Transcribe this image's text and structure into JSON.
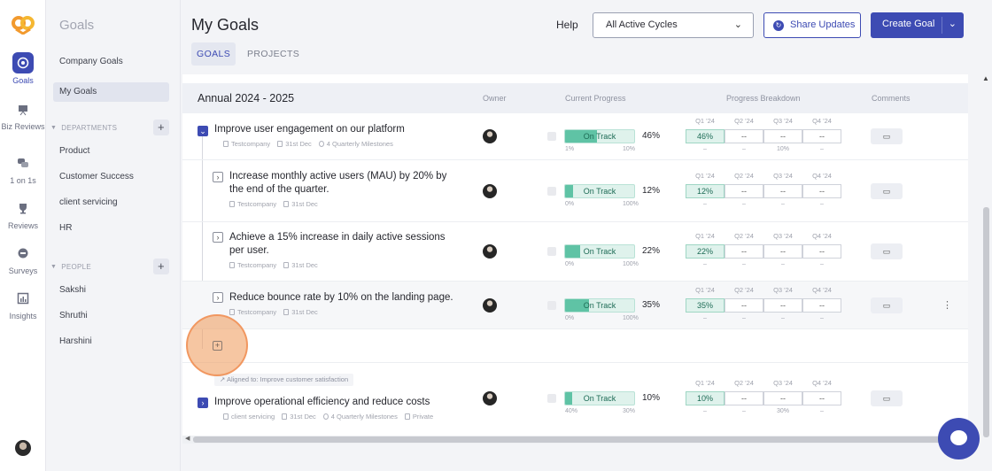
{
  "rail": {
    "items": [
      {
        "label": "Goals",
        "icon": "target-icon"
      },
      {
        "label": "Biz Reviews",
        "icon": "presentation-icon"
      },
      {
        "label": "1 on 1s",
        "icon": "chat-icon"
      },
      {
        "label": "Reviews",
        "icon": "trophy-icon"
      },
      {
        "label": "Surveys",
        "icon": "survey-icon"
      },
      {
        "label": "Insights",
        "icon": "chart-icon"
      }
    ]
  },
  "sidebar": {
    "title": "Goals",
    "company_goals": "Company Goals",
    "my_goals": "My Goals",
    "departments_label": "DEPARTMENTS",
    "departments": [
      "Product",
      "Customer Success",
      "client servicing",
      "HR"
    ],
    "people_label": "PEOPLE",
    "people": [
      "Sakshi",
      "Shruthi",
      "Harshini"
    ]
  },
  "header": {
    "title": "My Goals",
    "help": "Help",
    "cycle_select": "All Active Cycles",
    "share_updates": "Share Updates",
    "create_goal": "Create Goal"
  },
  "tabs": [
    "GOALS",
    "PROJECTS"
  ],
  "table": {
    "cycle": "Annual 2024 - 2025",
    "col_owner": "Owner",
    "col_progress": "Current Progress",
    "col_breakdown": "Progress Breakdown",
    "col_comments": "Comments",
    "quarters": [
      "Q1 '24",
      "Q2 '24",
      "Q3 '24",
      "Q4 '24"
    ],
    "status": "On Track",
    "rows": [
      {
        "title1": "Improve user engagement on our platform",
        "title2": "",
        "team": "Testcompany",
        "date": "31st Dec",
        "milestones": "4 Quarterly Milestones",
        "pct": "46%",
        "progress": 0.46,
        "min": "1%",
        "max": "10%",
        "q1": "46%",
        "q3sub": "10%"
      },
      {
        "title1": "Increase monthly active users (MAU) by 20% by",
        "title2": "the end of the quarter.",
        "team": "Testcompany",
        "date": "31st Dec",
        "pct": "12%",
        "progress": 0.12,
        "min": "0%",
        "max": "100%",
        "q1": "12%"
      },
      {
        "title1": "Achieve a 15% increase in daily active sessions",
        "title2": "per user.",
        "team": "Testcompany",
        "date": "31st Dec",
        "pct": "22%",
        "progress": 0.22,
        "min": "0%",
        "max": "100%",
        "q1": "22%"
      },
      {
        "title1": "Reduce bounce rate by 10% on the landing page.",
        "title2": "",
        "team": "Testcompany",
        "date": "31st Dec",
        "pct": "35%",
        "progress": 0.35,
        "min": "0%",
        "max": "100%",
        "q1": "35%"
      },
      {
        "title1": "Improve operational efficiency and reduce costs",
        "title2": "",
        "team": "client servicing",
        "date": "31st Dec",
        "milestones": "4 Quarterly Milestones",
        "privacy": "Private",
        "pct": "10%",
        "progress": 0.1,
        "min": "40%",
        "max": "30%",
        "q1": "10%",
        "q3sub": "30%"
      }
    ],
    "aligned_to": "Aligned to: Improve customer satisfaction",
    "dash": "--",
    "dash_small": "–"
  }
}
